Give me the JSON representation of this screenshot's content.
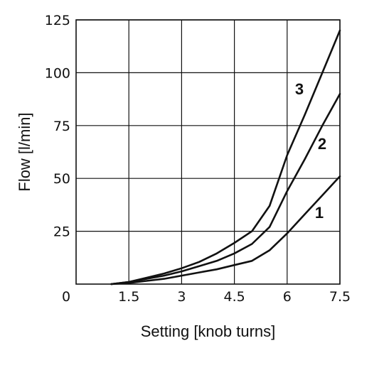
{
  "chart_data": {
    "type": "line",
    "title": "",
    "xlabel": "Setting [knob turns]",
    "ylabel": "Flow [l/min]",
    "xlim": [
      0,
      7.5
    ],
    "ylim": [
      0,
      125
    ],
    "x_ticks": [
      1.5,
      3,
      4.5,
      6,
      7.5
    ],
    "x_tick_labels": [
      "1.5",
      "3",
      "4.5",
      "6",
      "7.5"
    ],
    "y_ticks": [
      25,
      50,
      75,
      100,
      125
    ],
    "y_tick_labels": [
      "25",
      "50",
      "75",
      "100",
      "125"
    ],
    "origin_label": "0",
    "grid": true,
    "series": [
      {
        "name": "1",
        "x": [
          1.0,
          1.5,
          2.0,
          2.5,
          3.0,
          3.5,
          4.0,
          4.5,
          5.0,
          5.5,
          6.0,
          6.5,
          7.0,
          7.5
        ],
        "y": [
          0,
          0.5,
          1.5,
          2.5,
          4,
          5.5,
          7,
          9,
          11,
          16,
          24,
          33,
          42,
          51
        ]
      },
      {
        "name": "2",
        "x": [
          1.0,
          1.5,
          2.0,
          2.5,
          3.0,
          3.5,
          4.0,
          4.5,
          5.0,
          5.5,
          6.0,
          6.5,
          7.0,
          7.5
        ],
        "y": [
          0,
          1,
          2.5,
          4,
          6,
          8.5,
          11,
          14.5,
          19,
          27,
          44,
          59,
          75,
          90
        ]
      },
      {
        "name": "3",
        "x": [
          1.0,
          1.5,
          2.0,
          2.5,
          3.0,
          3.5,
          4.0,
          4.5,
          5.0,
          5.5,
          6.0,
          6.5,
          7.0,
          7.5
        ],
        "y": [
          0,
          1,
          3,
          5,
          7.5,
          10.5,
          14.5,
          19.5,
          25,
          37,
          61,
          80,
          100,
          120
        ]
      }
    ]
  }
}
